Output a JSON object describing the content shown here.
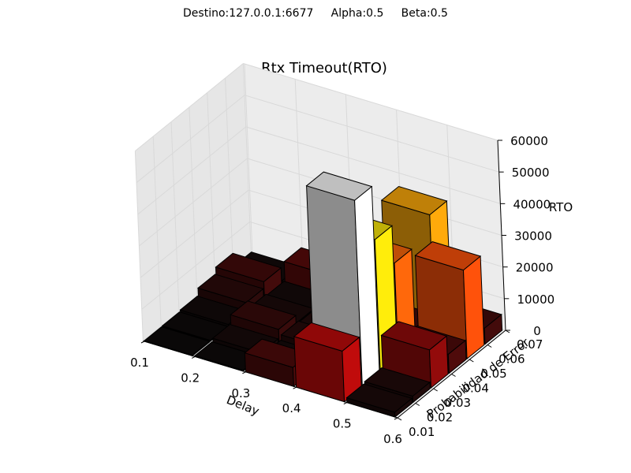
{
  "suptitle": "Destino:127.0.0.1:6677     Alpha:0.5     Beta:0.5",
  "chart_data": {
    "type": "bar3d",
    "title": "Rtx Timeout(RTO)",
    "xlabel": "Delay",
    "ylabel": "Probabilidad de Error",
    "zlabel": "RTO",
    "x_ticks": [
      "0.1",
      "0.2",
      "0.3",
      "0.4",
      "0.5",
      "0.6"
    ],
    "y_ticks": [
      "0.01",
      "0.02",
      "0.03",
      "0.04",
      "0.05",
      "0.06",
      "0.07"
    ],
    "z_ticks": [
      "0",
      "10000",
      "20000",
      "30000",
      "40000",
      "50000",
      "60000"
    ],
    "xlim": [
      0.1,
      0.6
    ],
    "ylim": [
      0.01,
      0.07
    ],
    "zlim": [
      0,
      60000
    ],
    "grid": true,
    "bars": [
      {
        "delay": 0.1,
        "error": 0.01,
        "rto": 200
      },
      {
        "delay": 0.1,
        "error": 0.02,
        "rto": 300
      },
      {
        "delay": 0.1,
        "error": 0.03,
        "rto": 700
      },
      {
        "delay": 0.1,
        "error": 0.04,
        "rto": 3000
      },
      {
        "delay": 0.1,
        "error": 0.05,
        "rto": 5000
      },
      {
        "delay": 0.1,
        "error": 0.06,
        "rto": 800
      },
      {
        "delay": 0.2,
        "error": 0.01,
        "rto": 300
      },
      {
        "delay": 0.2,
        "error": 0.02,
        "rto": 1200
      },
      {
        "delay": 0.2,
        "error": 0.03,
        "rto": 4000
      },
      {
        "delay": 0.2,
        "error": 0.04,
        "rto": 1500
      },
      {
        "delay": 0.2,
        "error": 0.05,
        "rto": 1000
      },
      {
        "delay": 0.2,
        "error": 0.06,
        "rto": 7000
      },
      {
        "delay": 0.3,
        "error": 0.01,
        "rto": 6000
      },
      {
        "delay": 0.3,
        "error": 0.02,
        "rto": 1000
      },
      {
        "delay": 0.3,
        "error": 0.03,
        "rto": 2500
      },
      {
        "delay": 0.3,
        "error": 0.04,
        "rto": 2000
      },
      {
        "delay": 0.3,
        "error": 0.05,
        "rto": 600
      },
      {
        "delay": 0.3,
        "error": 0.06,
        "rto": 1500
      },
      {
        "delay": 0.4,
        "error": 0.01,
        "rto": 16000
      },
      {
        "delay": 0.4,
        "error": 0.02,
        "rto": 59000
      },
      {
        "delay": 0.4,
        "error": 0.03,
        "rto": 42000
      },
      {
        "delay": 0.4,
        "error": 0.04,
        "rto": 30000
      },
      {
        "delay": 0.4,
        "error": 0.05,
        "rto": 5000
      },
      {
        "delay": 0.4,
        "error": 0.06,
        "rto": 36000
      },
      {
        "delay": 0.5,
        "error": 0.01,
        "rto": 1500
      },
      {
        "delay": 0.5,
        "error": 0.02,
        "rto": 2000
      },
      {
        "delay": 0.5,
        "error": 0.03,
        "rto": 12000
      },
      {
        "delay": 0.5,
        "error": 0.04,
        "rto": 6000
      },
      {
        "delay": 0.5,
        "error": 0.05,
        "rto": 28000
      },
      {
        "delay": 0.5,
        "error": 0.06,
        "rto": 5000
      }
    ]
  }
}
